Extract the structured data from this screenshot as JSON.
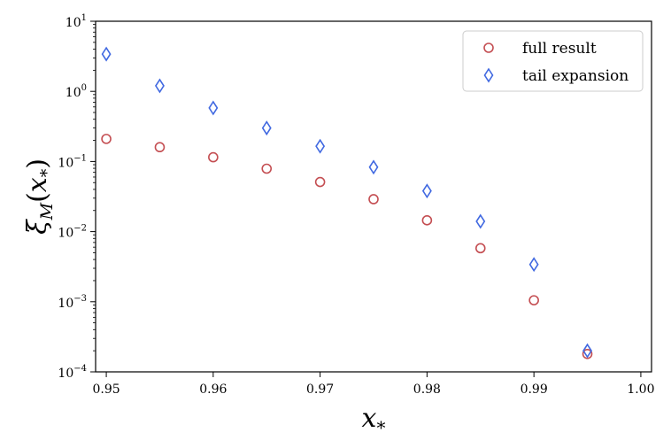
{
  "chart_data": {
    "type": "scatter",
    "title": "",
    "xlabel": "x_*",
    "ylabel": "ξ_M(x_*)",
    "xlim": [
      0.949,
      1.001
    ],
    "ylim": [
      0.0001,
      10
    ],
    "yscale": "log",
    "grid": false,
    "legend_position": "top-right",
    "x_ticks": [
      "0.95",
      "0.96",
      "0.97",
      "0.98",
      "0.99",
      "1.00"
    ],
    "x_tick_values": [
      0.95,
      0.96,
      0.97,
      0.98,
      0.99,
      1.0
    ],
    "y_ticks": [
      {
        "base": "10",
        "exp": "1",
        "value": 10
      },
      {
        "base": "10",
        "exp": "0",
        "value": 1
      },
      {
        "base": "10",
        "exp": "−1",
        "value": 0.1
      },
      {
        "base": "10",
        "exp": "−2",
        "value": 0.01
      },
      {
        "base": "10",
        "exp": "−3",
        "value": 0.001
      },
      {
        "base": "10",
        "exp": "−4",
        "value": 0.0001
      }
    ],
    "series": [
      {
        "name": "full result",
        "marker": "circle",
        "color": "#c44e52",
        "x": [
          0.95,
          0.955,
          0.96,
          0.965,
          0.97,
          0.975,
          0.98,
          0.985,
          0.99,
          0.995
        ],
        "y": [
          0.21,
          0.16,
          0.115,
          0.079,
          0.051,
          0.029,
          0.0145,
          0.0058,
          0.00105,
          0.00018
        ]
      },
      {
        "name": "tail expansion",
        "marker": "diamond",
        "color": "#4169e1",
        "x": [
          0.95,
          0.955,
          0.96,
          0.965,
          0.97,
          0.975,
          0.98,
          0.985,
          0.99,
          0.995
        ],
        "y": [
          3.4,
          1.2,
          0.58,
          0.3,
          0.165,
          0.083,
          0.038,
          0.014,
          0.0034,
          0.0002
        ]
      }
    ]
  }
}
